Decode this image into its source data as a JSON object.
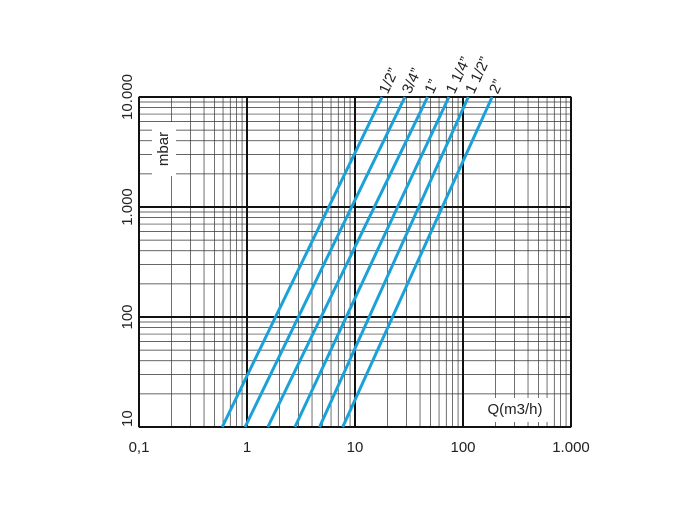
{
  "chart_data": {
    "type": "line",
    "xlabel": "Q(m3/h)",
    "ylabel": "mbar",
    "xscale": "log",
    "yscale": "log",
    "xlim": [
      0.1,
      1000
    ],
    "ylim": [
      10,
      10000
    ],
    "xticks": [
      {
        "value": 0.1,
        "label": "0,1"
      },
      1,
      10,
      100,
      {
        "value": 1000,
        "label": "1.000"
      }
    ],
    "yticks": [
      10,
      100,
      {
        "value": 1000,
        "label": "1.000"
      },
      {
        "value": 10000,
        "label": "10.000"
      }
    ],
    "xminor": [
      0.2,
      0.3,
      0.4,
      0.5,
      0.6,
      0.7,
      0.8,
      0.9,
      2,
      3,
      4,
      5,
      6,
      7,
      8,
      9,
      20,
      30,
      40,
      50,
      60,
      70,
      80,
      90,
      200,
      300,
      400,
      500,
      600,
      700,
      800,
      900
    ],
    "yminor": [
      20,
      30,
      40,
      50,
      60,
      70,
      80,
      90,
      200,
      300,
      400,
      500,
      600,
      700,
      800,
      900,
      2000,
      3000,
      4000,
      5000,
      6000,
      7000,
      8000,
      9000
    ],
    "grid": true,
    "series": [
      {
        "name": "1/2”",
        "color": "#1ba1d9",
        "x": [
          0.59,
          17.8
        ],
        "values": [
          10,
          10000
        ]
      },
      {
        "name": "3/4”",
        "color": "#1ba1d9",
        "x": [
          0.96,
          29
        ],
        "values": [
          10,
          10000
        ]
      },
      {
        "name": "1”",
        "color": "#1ba1d9",
        "x": [
          1.56,
          47
        ],
        "values": [
          10,
          10000
        ]
      },
      {
        "name": "1 1/4”",
        "color": "#1ba1d9",
        "x": [
          2.78,
          74
        ],
        "values": [
          10,
          10000
        ]
      },
      {
        "name": "1 1/2”",
        "color": "#1ba1d9",
        "x": [
          4.7,
          112
        ],
        "values": [
          10,
          10000
        ]
      },
      {
        "name": "2”",
        "color": "#1ba1d9",
        "x": [
          7.7,
          186
        ],
        "values": [
          10,
          10000
        ]
      }
    ]
  }
}
